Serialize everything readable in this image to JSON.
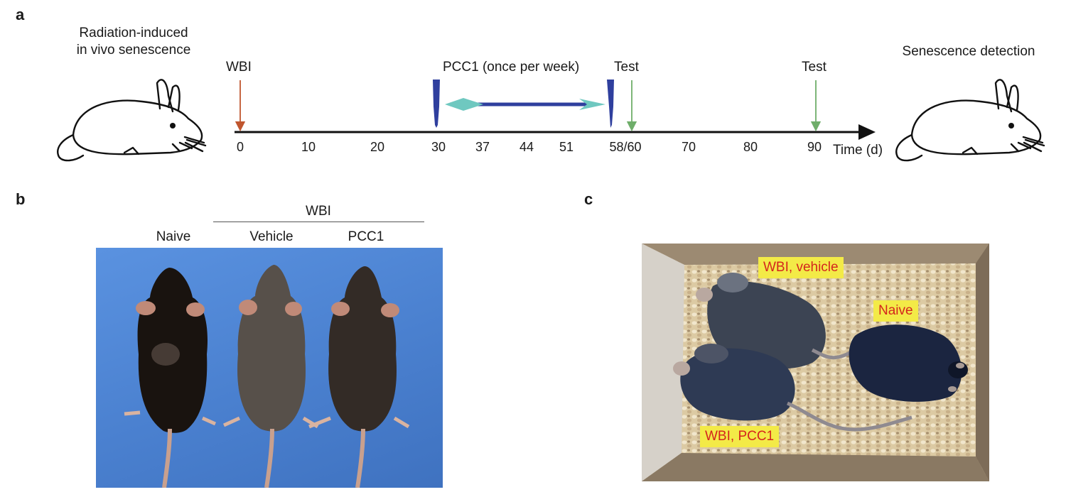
{
  "panel_a": {
    "letter": "a",
    "left_caption_line1": "Radiation-induced",
    "left_caption_line2": "in vivo senescence",
    "right_caption": "Senescence detection",
    "wbi_label": "WBI",
    "pcc1_label": "PCC1 (once per week)",
    "test_label_1": "Test",
    "test_label_2": "Test",
    "axis_unit": "Time (d)",
    "ticks": [
      "0",
      "10",
      "20",
      "30",
      "37",
      "44",
      "51",
      "58/60",
      "70",
      "80",
      "90"
    ],
    "colors": {
      "wbi_arrow": "#c0562f",
      "test_arrow": "#6fae6a",
      "syringe": "#2f3f9e",
      "syringe_tip": "#6fc8c0",
      "axis": "#111111"
    }
  },
  "panel_b": {
    "letter": "b",
    "group_label": "WBI",
    "mouse_labels": [
      "Naive",
      "Vehicle",
      "PCC1"
    ],
    "background_color": "#4f86d6"
  },
  "panel_c": {
    "letter": "c",
    "tags": [
      "WBI, vehicle",
      "Naive",
      "WBI, PCC1"
    ],
    "tag_colors": {
      "background": "#f3ea47",
      "text": "#d4261d"
    }
  }
}
